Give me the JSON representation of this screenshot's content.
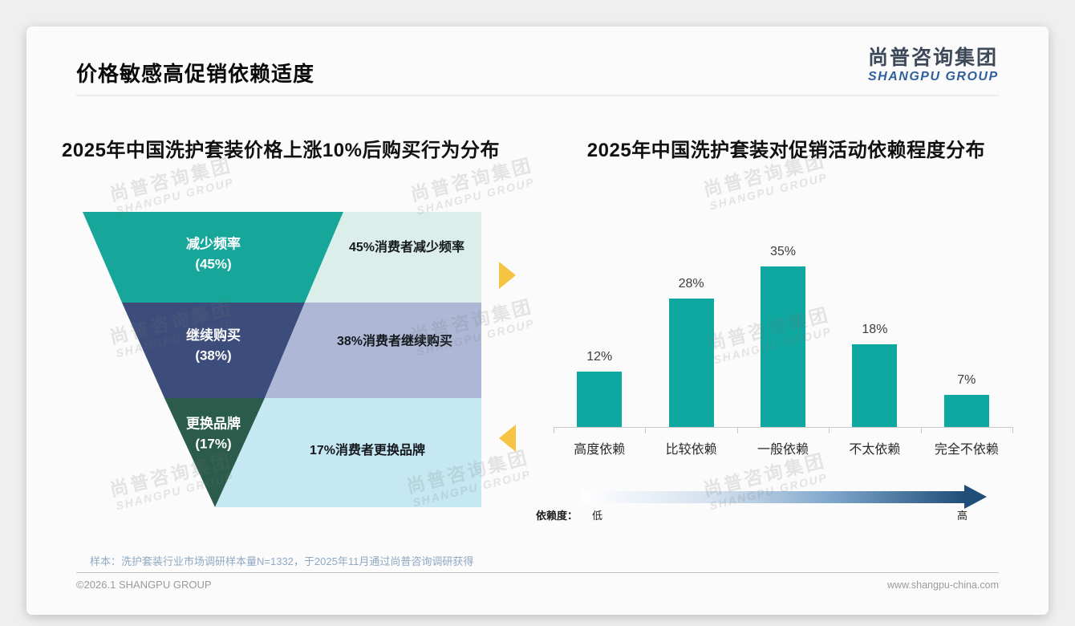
{
  "header": {
    "title": "价格敏感高促销依赖适度"
  },
  "logo": {
    "cn": "尚普咨询集团",
    "en": "SHANGPU GROUP"
  },
  "watermark": {
    "cn": "尚普咨询集团",
    "en": "SHANGPU GROUP"
  },
  "footer": {
    "sample_note": "样本：洗护套装行业市场调研样本量N=1332，于2025年11月通过尚普咨询调研获得",
    "copyright": "©2026.1 SHANGPU GROUP",
    "website": "www.shangpu-china.com"
  },
  "colors": {
    "funnel_teal": "#16A69A",
    "funnel_navy": "#3C4D7C",
    "funnel_green": "#2B5C4B",
    "panel_mint": "#DBEEE9",
    "panel_periwinkle": "#AEB8D6",
    "panel_cyan": "#C6E8F3",
    "arrow_yellow": "#F6C343",
    "bar_teal": "#0FA8A1",
    "scale_gradient_from": "#FFFFFF",
    "scale_gradient_to": "#1F4E79"
  },
  "chart_data": [
    {
      "type": "funnel",
      "title": "2025年中国洗护套装价格上涨10%后购买行为分布",
      "segments": [
        {
          "label": "减少频率",
          "pct": 45,
          "pct_display": "(45%)",
          "note": "45%消费者减少频率",
          "fill": "#16A69A",
          "panel_fill": "#DBEEE9"
        },
        {
          "label": "继续购买",
          "pct": 38,
          "pct_display": "(38%)",
          "note": "38%消费者继续购买",
          "fill": "#3C4D7C",
          "panel_fill": "#AEB8D6"
        },
        {
          "label": "更换品牌",
          "pct": 17,
          "pct_display": "(17%)",
          "note": "17%消费者更换品牌",
          "fill": "#2B5C4B",
          "panel_fill": "#C6E8F3"
        }
      ]
    },
    {
      "type": "bar",
      "title": "2025年中国洗护套装对促销活动依赖程度分布",
      "categories": [
        "高度依赖",
        "比较依赖",
        "一般依赖",
        "不太依赖",
        "完全不依赖"
      ],
      "values": [
        12,
        28,
        35,
        18,
        7
      ],
      "value_labels": [
        "12%",
        "28%",
        "35%",
        "18%",
        "7%"
      ],
      "ylim": [
        0,
        35
      ],
      "grid": false,
      "legend_position": "none",
      "bar_color": "#0FA8A1",
      "dependence_scale": {
        "label": "依赖度：",
        "low": "低",
        "high": "高"
      }
    }
  ]
}
